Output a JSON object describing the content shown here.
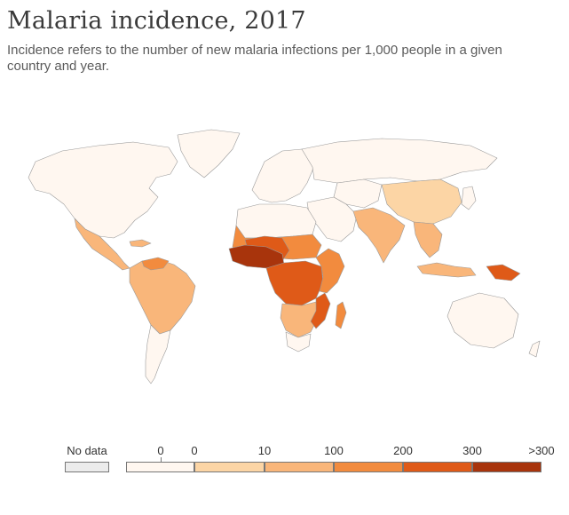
{
  "title": "Malaria incidence, 2017",
  "subtitle": "Incidence refers to the number of new malaria infections per 1,000 people in a given country and year.",
  "legend": {
    "no_data_label": "No data",
    "no_data_color": "#ececec",
    "bins": [
      {
        "from": "0",
        "to": "0",
        "color": "#fff7f0"
      },
      {
        "from": "0",
        "to": "10",
        "color": "#fcd5a5"
      },
      {
        "from": "10",
        "to": "100",
        "color": "#f9b67a"
      },
      {
        "from": "100",
        "to": "200",
        "color": "#f28b3e"
      },
      {
        "from": "200",
        "to": "300",
        "color": "#df5a18"
      },
      {
        "from": "300",
        "to": ">300",
        "color": "#a8340c"
      }
    ],
    "tick_labels": [
      "0",
      "0",
      "10",
      "100",
      "200",
      "300",
      ">300"
    ]
  },
  "regions": {
    "north_america": "#fff7f0",
    "greenland": "#fff7f0",
    "mexico_central_america": "#f9b67a",
    "caribbean": "#f9b67a",
    "south_america_north": "#f9b67a",
    "venezuela_guyana": "#f28b3e",
    "south_america_south": "#fff7f0",
    "europe": "#fff7f0",
    "russia_north_asia": "#fff7f0",
    "central_asia": "#fff7f0",
    "middle_east": "#fff7f0",
    "north_africa": "#fff7f0",
    "sahel_west": "#f28b3e",
    "west_africa_coast": "#a8340c",
    "west_africa_interior": "#df5a18",
    "central_africa": "#df5a18",
    "east_africa": "#f28b3e",
    "southern_africa": "#f9b67a",
    "south_africa": "#fff7f0",
    "madagascar": "#f28b3e",
    "mozambique": "#df5a18",
    "south_asia": "#f9b67a",
    "china": "#fcd5a5",
    "southeast_asia": "#f9b67a",
    "indonesia": "#f9b67a",
    "papua": "#df5a18",
    "australia": "#fff7f0",
    "japan_korea": "#fff7f0"
  }
}
